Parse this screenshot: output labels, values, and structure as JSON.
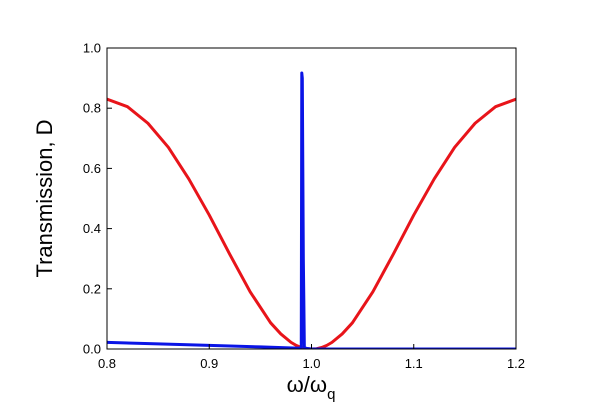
{
  "chart_data": {
    "type": "line",
    "xlabel": "ω/ω",
    "xlabel_sub": "q",
    "ylabel": "Transmission, D",
    "xlim": [
      0.8,
      1.2
    ],
    "ylim": [
      0.0,
      1.0
    ],
    "x_ticks": [
      0.8,
      0.9,
      1.0,
      1.1,
      1.2
    ],
    "x_tick_labels": [
      "0.8",
      "0.9",
      "1.0",
      "1.1",
      "1.2"
    ],
    "y_ticks": [
      0.0,
      0.2,
      0.4,
      0.6,
      0.8,
      1.0
    ],
    "y_tick_labels": [
      "0.0",
      "0.2",
      "0.4",
      "0.6",
      "0.8",
      "1.0"
    ],
    "grid": false,
    "series": [
      {
        "color": "#e8141a",
        "x": [
          0.8,
          0.82,
          0.84,
          0.86,
          0.88,
          0.9,
          0.92,
          0.94,
          0.96,
          0.97,
          0.98,
          0.985,
          0.99,
          0.995,
          1.0,
          1.005,
          1.01,
          1.015,
          1.02,
          1.03,
          1.04,
          1.06,
          1.08,
          1.1,
          1.12,
          1.14,
          1.16,
          1.18,
          1.2
        ],
        "y": [
          0.83,
          0.805,
          0.75,
          0.67,
          0.565,
          0.445,
          0.315,
          0.19,
          0.087,
          0.05,
          0.022,
          0.012,
          0.005,
          0.001,
          0.0,
          0.001,
          0.005,
          0.012,
          0.022,
          0.05,
          0.087,
          0.19,
          0.315,
          0.445,
          0.565,
          0.67,
          0.75,
          0.805,
          0.83
        ]
      },
      {
        "color": "#0a14e6",
        "x": [
          0.8,
          0.85,
          0.9,
          0.95,
          0.985,
          0.99,
          0.9905,
          0.991,
          0.9915,
          0.992,
          0.9925,
          0.993,
          0.995,
          1.0,
          1.05,
          1.1,
          1.15,
          1.2
        ],
        "y": [
          0.022,
          0.017,
          0.012,
          0.007,
          0.003,
          0.003,
          0.917,
          0.9,
          0.6,
          0.3,
          0.16,
          0.005,
          0.002,
          0.0,
          0.0,
          0.0,
          0.0,
          0.0
        ]
      }
    ]
  }
}
